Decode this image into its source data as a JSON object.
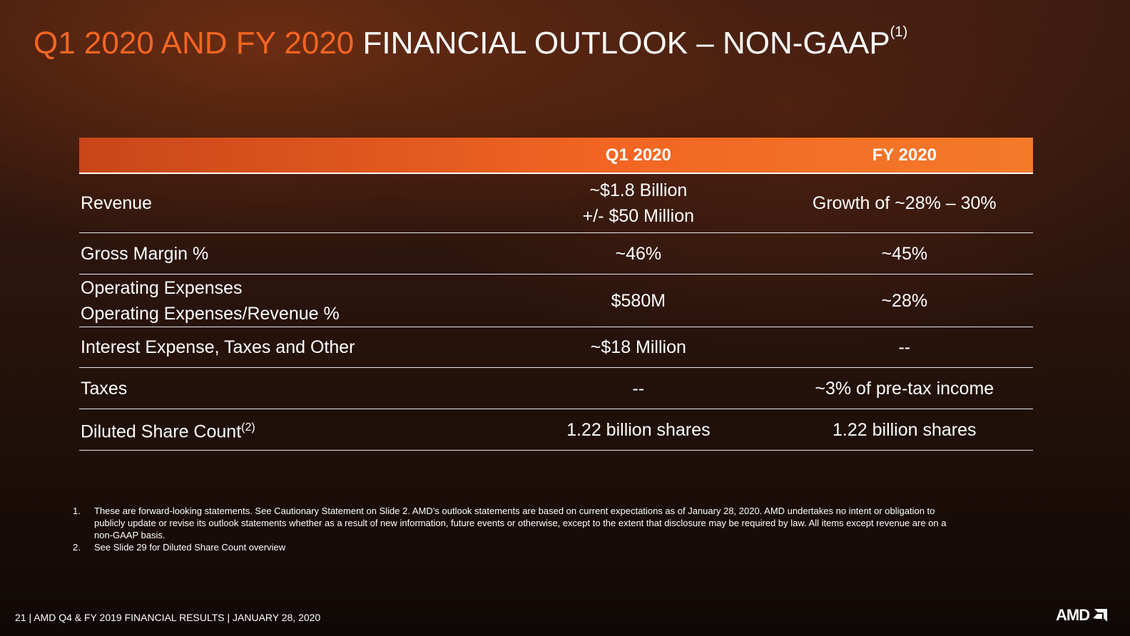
{
  "title": {
    "highlight": "Q1 2020 AND FY 2020",
    "rest": "FINANCIAL OUTLOOK – NON-GAAP",
    "note": "(1)"
  },
  "table": {
    "header": [
      "Q1 2020",
      "FY 2020"
    ],
    "rows": [
      {
        "label": [
          "Revenue"
        ],
        "q1": [
          "~$1.8 Billion",
          "+/- $50 Million"
        ],
        "fy": [
          "Growth of ~28% – 30%"
        ]
      },
      {
        "label": [
          "Gross Margin %"
        ],
        "q1": [
          "~46%"
        ],
        "fy": [
          "~45%"
        ]
      },
      {
        "label": [
          "Operating Expenses",
          "Operating Expenses/Revenue %"
        ],
        "q1": [
          "$580M"
        ],
        "fy": [
          "~28%"
        ]
      },
      {
        "label": [
          "Interest Expense, Taxes and Other"
        ],
        "q1": [
          "~$18 Million"
        ],
        "fy": [
          "--"
        ]
      },
      {
        "label": [
          "Taxes"
        ],
        "q1": [
          "--"
        ],
        "fy": [
          "~3% of pre-tax income"
        ]
      },
      {
        "label": [
          "Diluted Share Count"
        ],
        "label_note": "(2)",
        "q1": [
          "1.22 billion shares"
        ],
        "fy": [
          "1.22 billion shares"
        ]
      }
    ]
  },
  "footnotes": [
    {
      "number": "1.",
      "text": "These are forward-looking statements.  See Cautionary Statement on Slide 2. AMD’s outlook statements are based on current expectations as of January 28, 2020.  AMD undertakes no intent or obligation to publicly update or revise its outlook statements whether as a result of new information, future events or otherwise, except to the extent that disclosure may be required by law.   All items except revenue are on a non-GAAP basis."
    },
    {
      "number": "2.",
      "text": "See Slide 29 for Diluted Share Count overview"
    }
  ],
  "footer": "21  | AMD Q4 & FY 2019 FINANCIAL RESULTS | JANUARY 28, 2020",
  "logo": "AMD"
}
